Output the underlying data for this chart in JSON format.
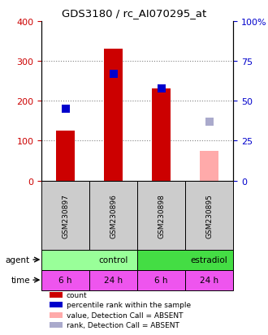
{
  "title": "GDS3180 / rc_AI070295_at",
  "samples": [
    "GSM230897",
    "GSM230896",
    "GSM230898",
    "GSM230895"
  ],
  "count_values": [
    125,
    330,
    232,
    null
  ],
  "count_absent_values": [
    null,
    null,
    null,
    75
  ],
  "rank_pct_values": [
    45,
    67,
    58,
    null
  ],
  "rank_pct_absent_values": [
    null,
    null,
    null,
    37
  ],
  "ylim_left": [
    0,
    400
  ],
  "ylim_right": [
    0,
    100
  ],
  "yticks_left": [
    0,
    100,
    200,
    300,
    400
  ],
  "yticks_right": [
    0,
    25,
    50,
    75,
    100
  ],
  "left_tick_labels": [
    "0",
    "100",
    "200",
    "300",
    "400"
  ],
  "right_tick_labels": [
    "0",
    "25",
    "50",
    "75",
    "100%"
  ],
  "color_count": "#cc0000",
  "color_rank": "#0000cc",
  "color_count_absent": "#ffaaaa",
  "color_rank_absent": "#aaaacc",
  "agent_labels": [
    [
      "control",
      0,
      2
    ],
    [
      "estradiol",
      2,
      4
    ]
  ],
  "agent_colors": [
    "#99ff99",
    "#44dd44"
  ],
  "time_labels": [
    "6 h",
    "24 h",
    "6 h",
    "24 h"
  ],
  "time_color": "#ee55ee",
  "sample_bg_color": "#cccccc",
  "legend_items": [
    {
      "color": "#cc0000",
      "label": "count"
    },
    {
      "color": "#0000cc",
      "label": "percentile rank within the sample"
    },
    {
      "color": "#ffaaaa",
      "label": "value, Detection Call = ABSENT"
    },
    {
      "color": "#aaaacc",
      "label": "rank, Detection Call = ABSENT"
    }
  ]
}
